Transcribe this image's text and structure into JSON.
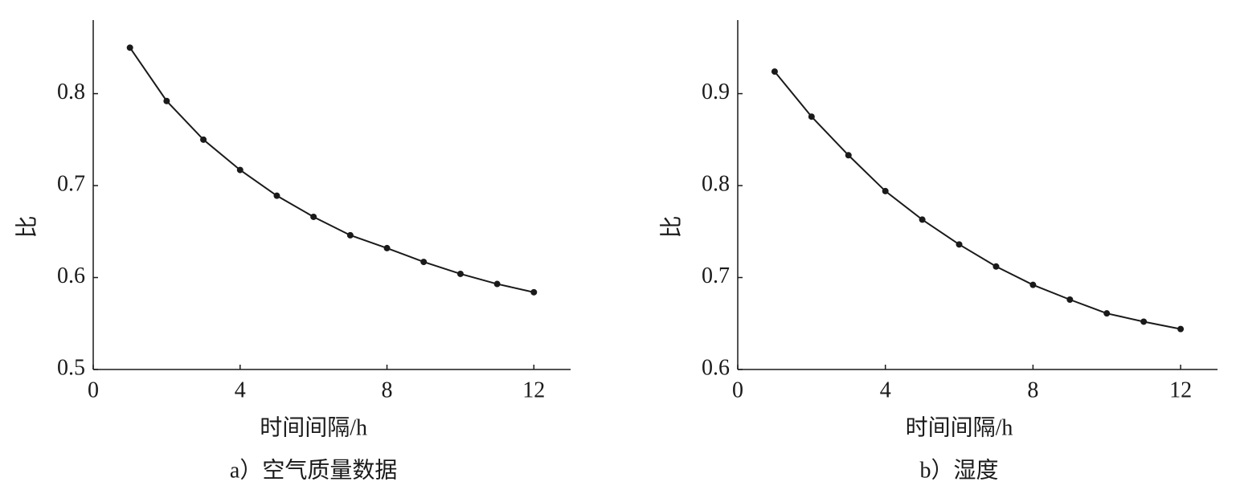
{
  "chart_data": [
    {
      "type": "line",
      "caption": "a）空气质量数据",
      "xlabel": "时间间隔/h",
      "ylabel": "比",
      "x": [
        1,
        2,
        3,
        4,
        5,
        6,
        7,
        8,
        9,
        10,
        11,
        12
      ],
      "values": [
        0.85,
        0.792,
        0.75,
        0.717,
        0.689,
        0.666,
        0.646,
        0.632,
        0.617,
        0.604,
        0.593,
        0.584
      ],
      "color": "#1a1a1a",
      "xlim": [
        0,
        13
      ],
      "xticks": [
        0,
        4,
        8,
        12
      ],
      "ylim": [
        0.5,
        0.88
      ],
      "yticks": [
        0.5,
        0.6,
        0.7,
        0.8
      ]
    },
    {
      "type": "line",
      "caption": "b）湿度",
      "xlabel": "时间间隔/h",
      "ylabel": "比",
      "x": [
        1,
        2,
        3,
        4,
        5,
        6,
        7,
        8,
        9,
        10,
        11,
        12
      ],
      "values": [
        0.924,
        0.875,
        0.833,
        0.794,
        0.763,
        0.736,
        0.712,
        0.692,
        0.676,
        0.661,
        0.652,
        0.644
      ],
      "color": "#1a1a1a",
      "xlim": [
        0,
        13
      ],
      "xticks": [
        0,
        4,
        8,
        12
      ],
      "ylim": [
        0.6,
        0.98
      ],
      "yticks": [
        0.6,
        0.7,
        0.8,
        0.9
      ]
    }
  ]
}
